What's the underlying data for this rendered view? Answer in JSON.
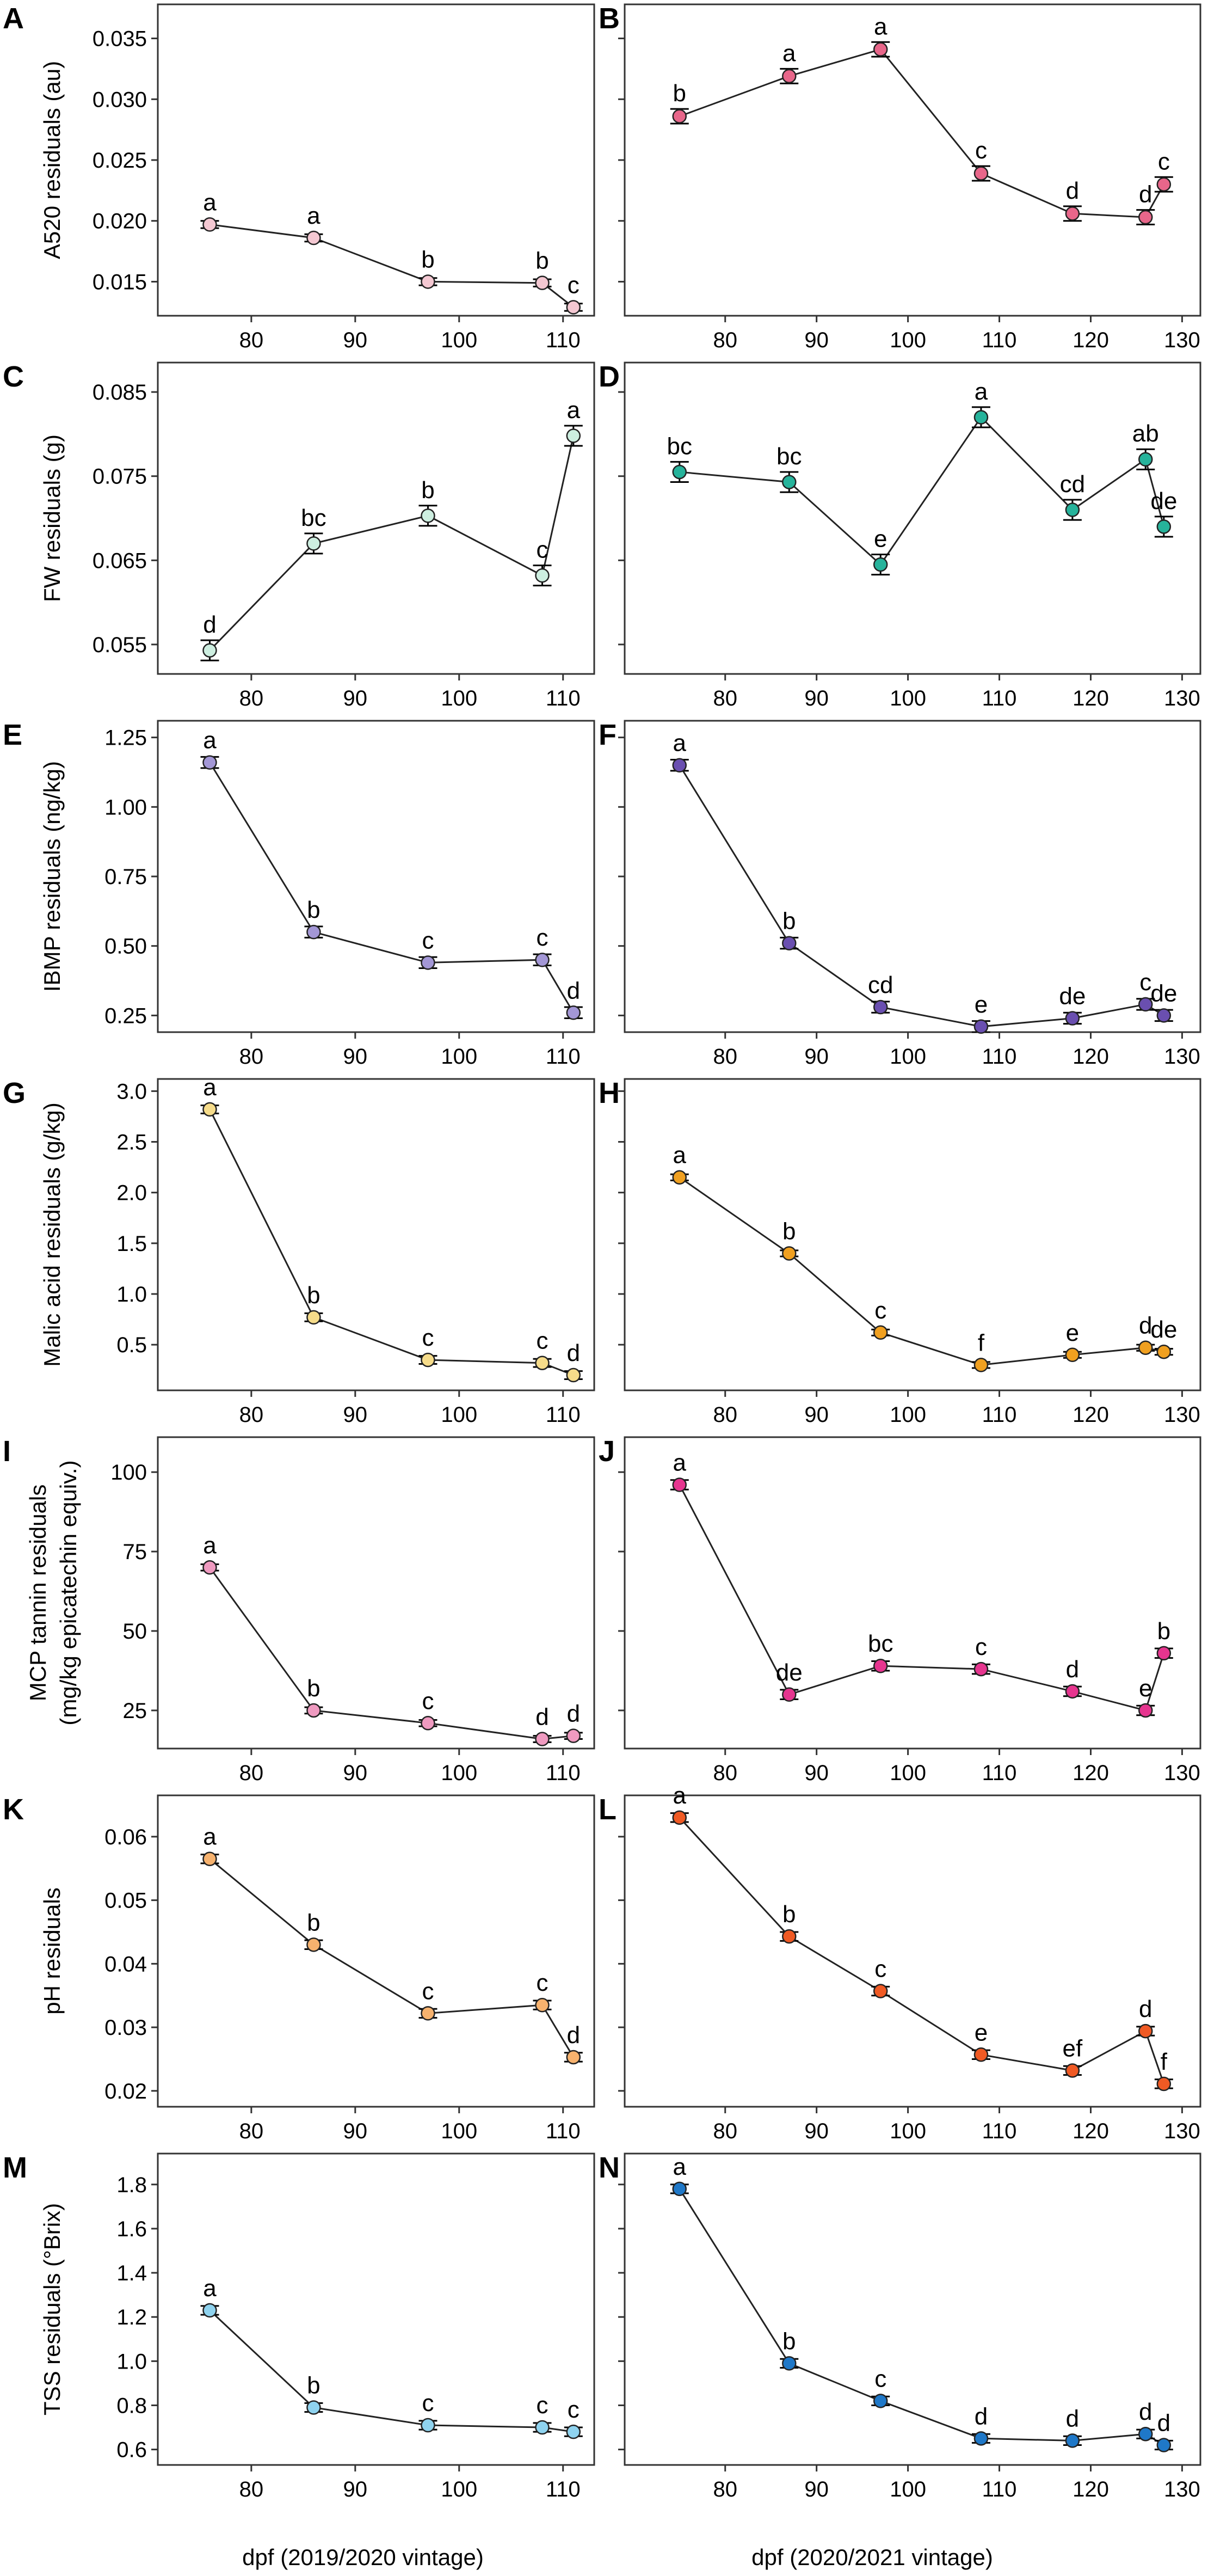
{
  "x_titles": {
    "left": "dpf (2019/2020 vintage)",
    "right": "dpf (2020/2021 vintage)"
  },
  "chart_data": [
    {
      "panel": "A",
      "type": "line",
      "color": "#f4c8d2",
      "ylabel": [
        "A520 residuals (au)"
      ],
      "xlim": [
        71,
        113
      ],
      "ylim": [
        0.0122,
        0.0378
      ],
      "xticks": [
        80,
        90,
        100,
        110
      ],
      "yticks": [
        0.015,
        0.02,
        0.025,
        0.03,
        0.035
      ],
      "ytick_labels": [
        "0.015",
        "0.020",
        "0.025",
        "0.030",
        "0.035"
      ],
      "show_ytick_labels": true,
      "x": [
        76,
        86,
        97,
        108,
        111
      ],
      "y": [
        0.0197,
        0.0186,
        0.015,
        0.0149,
        0.0129
      ],
      "err": [
        0.0003,
        0.0003,
        0.0003,
        0.0003,
        0.0003
      ],
      "letters": [
        "a",
        "a",
        "b",
        "b",
        "c"
      ]
    },
    {
      "panel": "B",
      "type": "line",
      "color": "#e8668a",
      "ylabel": [],
      "xlim": [
        69,
        132
      ],
      "ylim": [
        0.0122,
        0.0378
      ],
      "xticks": [
        80,
        90,
        100,
        110,
        120,
        130
      ],
      "yticks": [
        0.015,
        0.02,
        0.025,
        0.03,
        0.035
      ],
      "ytick_labels": [],
      "show_ytick_labels": false,
      "x": [
        75,
        87,
        97,
        108,
        118,
        126,
        128
      ],
      "y": [
        0.0286,
        0.0319,
        0.0341,
        0.0239,
        0.0206,
        0.0203,
        0.023
      ],
      "err": [
        0.0006,
        0.0006,
        0.0006,
        0.0006,
        0.0006,
        0.0006,
        0.0006
      ],
      "letters": [
        "b",
        "a",
        "a",
        "c",
        "d",
        "d",
        "c"
      ]
    },
    {
      "panel": "C",
      "type": "line",
      "color": "#cdeee0",
      "ylabel": [
        "FW residuals (g)"
      ],
      "xlim": [
        71,
        113
      ],
      "ylim": [
        0.0515,
        0.0885
      ],
      "xticks": [
        80,
        90,
        100,
        110
      ],
      "yticks": [
        0.055,
        0.065,
        0.075,
        0.085
      ],
      "ytick_labels": [
        "0.055",
        "0.065",
        "0.075",
        "0.085"
      ],
      "show_ytick_labels": true,
      "x": [
        76,
        86,
        97,
        108,
        111
      ],
      "y": [
        0.0543,
        0.067,
        0.0703,
        0.0632,
        0.0798
      ],
      "err": [
        0.0012,
        0.0012,
        0.0012,
        0.0012,
        0.0012
      ],
      "letters": [
        "d",
        "bc",
        "b",
        "c",
        "a"
      ]
    },
    {
      "panel": "D",
      "type": "line",
      "color": "#26b39b",
      "ylabel": [],
      "xlim": [
        69,
        132
      ],
      "ylim": [
        0.0515,
        0.0885
      ],
      "xticks": [
        80,
        90,
        100,
        110,
        120,
        130
      ],
      "yticks": [
        0.055,
        0.065,
        0.075,
        0.085
      ],
      "ytick_labels": [],
      "show_ytick_labels": false,
      "x": [
        75,
        87,
        97,
        108,
        118,
        126,
        128
      ],
      "y": [
        0.0755,
        0.0743,
        0.0645,
        0.082,
        0.071,
        0.077,
        0.069
      ],
      "err": [
        0.0012,
        0.0012,
        0.0012,
        0.0012,
        0.0012,
        0.0012,
        0.0012
      ],
      "letters": [
        "bc",
        "bc",
        "e",
        "a",
        "cd",
        "ab",
        "de"
      ]
    },
    {
      "panel": "E",
      "type": "line",
      "color": "#a397d6",
      "ylabel": [
        "IBMP residuals (ng/kg)"
      ],
      "xlim": [
        71,
        113
      ],
      "ylim": [
        0.19,
        1.31
      ],
      "xticks": [
        80,
        90,
        100,
        110
      ],
      "yticks": [
        0.25,
        0.5,
        0.75,
        1.0,
        1.25
      ],
      "ytick_labels": [
        "0.25",
        "0.50",
        "0.75",
        "1.00",
        "1.25"
      ],
      "show_ytick_labels": true,
      "x": [
        76,
        86,
        97,
        108,
        111
      ],
      "y": [
        1.16,
        0.55,
        0.44,
        0.45,
        0.26
      ],
      "err": [
        0.02,
        0.02,
        0.02,
        0.02,
        0.02
      ],
      "letters": [
        "a",
        "b",
        "c",
        "c",
        "d"
      ]
    },
    {
      "panel": "F",
      "type": "line",
      "color": "#6a4fb0",
      "ylabel": [],
      "xlim": [
        69,
        132
      ],
      "ylim": [
        0.19,
        1.31
      ],
      "xticks": [
        80,
        90,
        100,
        110,
        120,
        130
      ],
      "yticks": [
        0.25,
        0.5,
        0.75,
        1.0,
        1.25
      ],
      "ytick_labels": [],
      "show_ytick_labels": false,
      "x": [
        75,
        87,
        97,
        108,
        118,
        126,
        128
      ],
      "y": [
        1.15,
        0.51,
        0.28,
        0.21,
        0.24,
        0.29,
        0.25
      ],
      "err": [
        0.02,
        0.02,
        0.02,
        0.02,
        0.02,
        0.02,
        0.02
      ],
      "letters": [
        "a",
        "b",
        "cd",
        "e",
        "de",
        "c",
        "de"
      ]
    },
    {
      "panel": "G",
      "type": "line",
      "color": "#f6dc8a",
      "ylabel": [
        "Malic acid residuals (g/kg)"
      ],
      "xlim": [
        71,
        113
      ],
      "ylim": [
        0.05,
        3.12
      ],
      "xticks": [
        80,
        90,
        100,
        110
      ],
      "yticks": [
        0.5,
        1.0,
        1.5,
        2.0,
        2.5,
        3.0
      ],
      "ytick_labels": [
        "0.5",
        "1.0",
        "1.5",
        "2.0",
        "2.5",
        "3.0"
      ],
      "show_ytick_labels": true,
      "x": [
        76,
        86,
        97,
        108,
        111
      ],
      "y": [
        2.82,
        0.77,
        0.35,
        0.32,
        0.2
      ],
      "err": [
        0.04,
        0.04,
        0.04,
        0.04,
        0.04
      ],
      "letters": [
        "a",
        "b",
        "c",
        "c",
        "d"
      ]
    },
    {
      "panel": "H",
      "type": "line",
      "color": "#f0a020",
      "ylabel": [],
      "xlim": [
        69,
        132
      ],
      "ylim": [
        0.05,
        3.12
      ],
      "xticks": [
        80,
        90,
        100,
        110,
        120,
        130
      ],
      "yticks": [
        0.5,
        1.0,
        1.5,
        2.0,
        2.5,
        3.0
      ],
      "ytick_labels": [],
      "show_ytick_labels": false,
      "x": [
        75,
        87,
        97,
        108,
        118,
        126,
        128
      ],
      "y": [
        2.15,
        1.4,
        0.62,
        0.3,
        0.4,
        0.47,
        0.43
      ],
      "err": [
        0.03,
        0.03,
        0.03,
        0.03,
        0.03,
        0.03,
        0.03
      ],
      "letters": [
        "a",
        "b",
        "c",
        "f",
        "e",
        "d",
        "de"
      ]
    },
    {
      "panel": "I",
      "type": "line",
      "color": "#ef9ac0",
      "ylabel": [
        "MCP tannin residuals",
        "(mg/kg epicatechin equiv.)"
      ],
      "xlim": [
        71,
        113
      ],
      "ylim": [
        13,
        111
      ],
      "xticks": [
        80,
        90,
        100,
        110
      ],
      "yticks": [
        25,
        50,
        75,
        100
      ],
      "ytick_labels": [
        "25",
        "50",
        "75",
        "100"
      ],
      "show_ytick_labels": true,
      "x": [
        76,
        86,
        97,
        108,
        111
      ],
      "y": [
        70,
        25,
        21,
        16,
        17
      ],
      "err": [
        1,
        1,
        1,
        1,
        1
      ],
      "letters": [
        "a",
        "b",
        "c",
        "d",
        "d"
      ]
    },
    {
      "panel": "J",
      "type": "line",
      "color": "#e6358f",
      "ylabel": [],
      "xlim": [
        69,
        132
      ],
      "ylim": [
        13,
        111
      ],
      "xticks": [
        80,
        90,
        100,
        110,
        120,
        130
      ],
      "yticks": [
        25,
        50,
        75,
        100
      ],
      "ytick_labels": [],
      "show_ytick_labels": false,
      "x": [
        75,
        87,
        97,
        108,
        118,
        126,
        128
      ],
      "y": [
        96,
        30,
        39,
        38,
        31,
        25,
        43
      ],
      "err": [
        1.5,
        1.5,
        1.5,
        1.5,
        1.5,
        1.5,
        1.5
      ],
      "letters": [
        "a",
        "de",
        "bc",
        "c",
        "d",
        "e",
        "b"
      ]
    },
    {
      "panel": "K",
      "type": "line",
      "color": "#f7b26e",
      "ylabel": [
        "pH residuals"
      ],
      "xlim": [
        71,
        113
      ],
      "ylim": [
        0.0175,
        0.0665
      ],
      "xticks": [
        80,
        90,
        100,
        110
      ],
      "yticks": [
        0.02,
        0.03,
        0.04,
        0.05,
        0.06
      ],
      "ytick_labels": [
        "0.02",
        "0.03",
        "0.04",
        "0.05",
        "0.06"
      ],
      "show_ytick_labels": true,
      "x": [
        76,
        86,
        97,
        108,
        111
      ],
      "y": [
        0.0565,
        0.043,
        0.0322,
        0.0335,
        0.0253
      ],
      "err": [
        0.0007,
        0.0007,
        0.0007,
        0.0007,
        0.0007
      ],
      "letters": [
        "a",
        "b",
        "c",
        "c",
        "d"
      ]
    },
    {
      "panel": "L",
      "type": "line",
      "color": "#f05a24",
      "ylabel": [],
      "xlim": [
        69,
        132
      ],
      "ylim": [
        0.0175,
        0.0665
      ],
      "xticks": [
        80,
        90,
        100,
        110,
        120,
        130
      ],
      "yticks": [
        0.02,
        0.03,
        0.04,
        0.05,
        0.06
      ],
      "ytick_labels": [],
      "show_ytick_labels": false,
      "x": [
        75,
        87,
        97,
        108,
        118,
        126,
        128
      ],
      "y": [
        0.063,
        0.0443,
        0.0357,
        0.0257,
        0.0232,
        0.0294,
        0.0211
      ],
      "err": [
        0.0007,
        0.0007,
        0.0007,
        0.0007,
        0.0007,
        0.0007,
        0.0007
      ],
      "letters": [
        "a",
        "b",
        "c",
        "e",
        "ef",
        "d",
        "f"
      ]
    },
    {
      "panel": "M",
      "type": "line",
      "color": "#8fd3ef",
      "ylabel": [
        "TSS residuals (°Brix)"
      ],
      "xlim": [
        71,
        113
      ],
      "ylim": [
        0.53,
        1.94
      ],
      "xticks": [
        80,
        90,
        100,
        110
      ],
      "yticks": [
        0.6,
        0.8,
        1.0,
        1.2,
        1.4,
        1.6,
        1.8
      ],
      "ytick_labels": [
        "0.6",
        "0.8",
        "1.0",
        "1.2",
        "1.4",
        "1.6",
        "1.8"
      ],
      "show_ytick_labels": true,
      "x": [
        76,
        86,
        97,
        108,
        111
      ],
      "y": [
        1.23,
        0.79,
        0.71,
        0.7,
        0.68
      ],
      "err": [
        0.02,
        0.02,
        0.02,
        0.02,
        0.02
      ],
      "letters": [
        "a",
        "b",
        "c",
        "c",
        "c"
      ]
    },
    {
      "panel": "N",
      "type": "line",
      "color": "#1f78c8",
      "ylabel": [],
      "xlim": [
        69,
        132
      ],
      "ylim": [
        0.53,
        1.94
      ],
      "xticks": [
        80,
        90,
        100,
        110,
        120,
        130
      ],
      "yticks": [
        0.6,
        0.8,
        1.0,
        1.2,
        1.4,
        1.6,
        1.8
      ],
      "ytick_labels": [],
      "show_ytick_labels": false,
      "x": [
        75,
        87,
        97,
        108,
        118,
        126,
        128
      ],
      "y": [
        1.78,
        0.99,
        0.82,
        0.65,
        0.64,
        0.67,
        0.62
      ],
      "err": [
        0.02,
        0.02,
        0.02,
        0.02,
        0.02,
        0.02,
        0.02
      ],
      "letters": [
        "a",
        "b",
        "c",
        "d",
        "d",
        "d",
        "d"
      ]
    }
  ]
}
